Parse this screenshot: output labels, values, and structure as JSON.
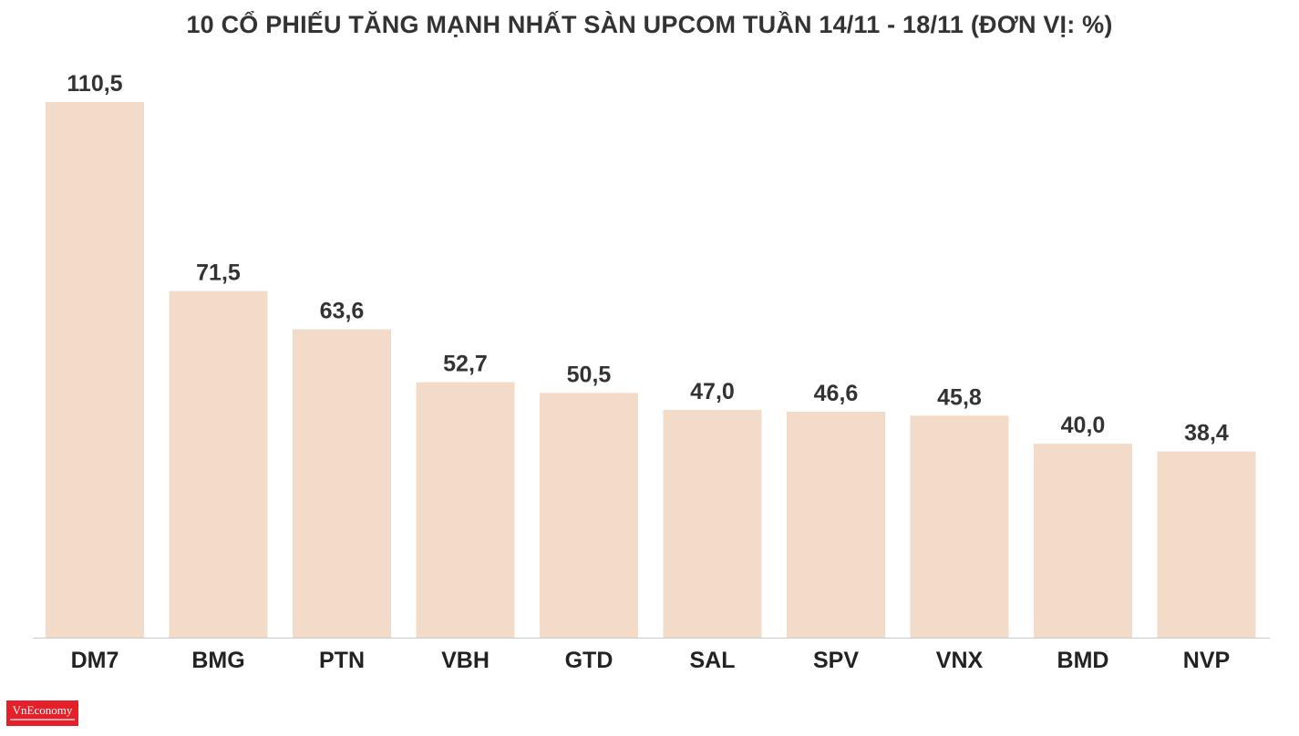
{
  "title": "10 CỔ PHIẾU TĂNG MẠNH NHẤT SÀN UPCOM TUẦN 14/11 - 18/11 (ĐƠN VỊ: %)",
  "logo": {
    "text": "VnEconomy"
  },
  "colors": {
    "bar": "#f2dbc9",
    "text": "#333333"
  },
  "chart_data": {
    "type": "bar",
    "title": "10 CỔ PHIẾU TĂNG MẠNH NHẤT SÀN UPCOM TUẦN 14/11 - 18/11 (ĐƠN VỊ: %)",
    "categories": [
      "DM7",
      "BMG",
      "PTN",
      "VBH",
      "GTD",
      "SAL",
      "SPV",
      "VNX",
      "BMD",
      "NVP"
    ],
    "values": [
      110.5,
      71.5,
      63.6,
      52.7,
      50.5,
      47.0,
      46.6,
      45.8,
      40.0,
      38.4
    ],
    "value_labels": [
      "110,5",
      "71,5",
      "63,6",
      "52,7",
      "50,5",
      "47,0",
      "46,6",
      "45,8",
      "40,0",
      "38,4"
    ],
    "xlabel": "",
    "ylabel": "",
    "ylim": [
      0,
      110.5
    ],
    "grid": false,
    "legend": "none"
  }
}
